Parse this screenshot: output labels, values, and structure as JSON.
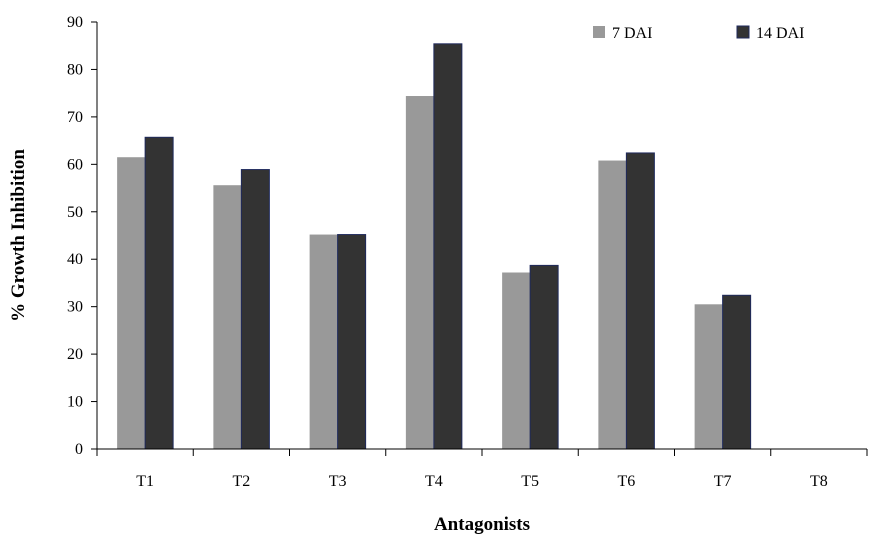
{
  "chart_data": {
    "type": "bar",
    "title": "",
    "xlabel": "Antagonists",
    "ylabel": "% Growth Inhibition",
    "categories": [
      "T1",
      "T2",
      "T3",
      "T4",
      "T5",
      "T6",
      "T7",
      "T8"
    ],
    "series": [
      {
        "name": "7 DAI",
        "color": "#999999",
        "values": [
          61.5,
          55.6,
          45.2,
          74.4,
          37.2,
          60.8,
          30.5,
          0
        ]
      },
      {
        "name": "14 DAI",
        "color": "#333333",
        "values": [
          65.7,
          58.9,
          45.2,
          85.4,
          38.7,
          62.4,
          32.4,
          0
        ]
      }
    ],
    "ylim": [
      0,
      90
    ],
    "yticks": [
      0,
      10,
      20,
      30,
      40,
      50,
      60,
      70,
      80,
      90
    ],
    "grid": false,
    "legend_position": "top-right",
    "bar_edge_color": "#1f2a5c"
  }
}
